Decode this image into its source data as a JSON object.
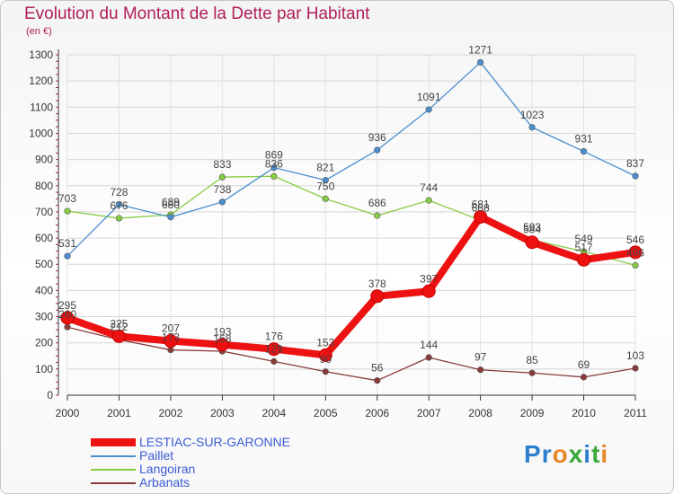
{
  "chart_data": {
    "type": "line",
    "title": "Evolution du Montant de la Dette par Habitant",
    "subtitle": "(en €)",
    "xlabel": "",
    "ylabel": "",
    "categories": [
      "2000",
      "2001",
      "2002",
      "2003",
      "2004",
      "2005",
      "2006",
      "2007",
      "2008",
      "2009",
      "2010",
      "2011"
    ],
    "ylim": [
      0,
      1300
    ],
    "yticks": [
      0,
      100,
      200,
      300,
      400,
      500,
      600,
      700,
      800,
      900,
      1000,
      1100,
      1200,
      1300
    ],
    "grid": true,
    "legend_position": "bottom-left",
    "series": [
      {
        "name": "LESTIAC-SUR-GARONNE",
        "color": "#ee1111",
        "values": [
          295,
          225,
          207,
          193,
          176,
          153,
          378,
          397,
          681,
          584,
          517,
          546
        ]
      },
      {
        "name": "Paillet",
        "color": "#4a8fd0",
        "values": [
          531,
          728,
          680,
          738,
          869,
          821,
          936,
          1091,
          1271,
          1023,
          931,
          837
        ]
      },
      {
        "name": "Langoiran",
        "color": "#88cc44",
        "values": [
          703,
          676,
          689,
          833,
          836,
          750,
          686,
          744,
          668,
          593,
          549,
          496
        ]
      },
      {
        "name": "Arbanats",
        "color": "#8b3a3a",
        "values": [
          260,
          212,
          173,
          168,
          129,
          90,
          56,
          144,
          97,
          85,
          69,
          103
        ]
      }
    ]
  },
  "logo": {
    "text": "Proxiti",
    "letters": [
      "P",
      "r",
      "o",
      "x",
      "i",
      "t",
      "i"
    ],
    "colors": [
      "#2f7fd0",
      "#2f7fd0",
      "#e8862a",
      "#3aa83a",
      "#2f7fd0",
      "#3aa83a",
      "#e8862a"
    ]
  }
}
